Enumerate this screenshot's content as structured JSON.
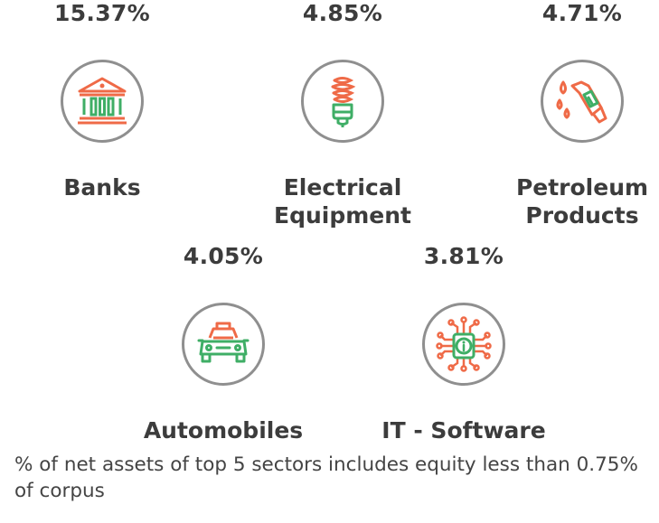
{
  "chart_data": {
    "type": "table",
    "sectors": [
      {
        "name": "Banks",
        "value": 15.37,
        "value_label": "15.37%",
        "label_lines": [
          "Banks"
        ],
        "icon": "bank-icon"
      },
      {
        "name": "Electrical Equipment",
        "value": 4.85,
        "value_label": "4.85%",
        "label_lines": [
          "Electrical",
          "Equipment"
        ],
        "icon": "light-bulb-icon"
      },
      {
        "name": "Petroleum Products",
        "value": 4.71,
        "value_label": "4.71%",
        "label_lines": [
          "Petroleum",
          "Products"
        ],
        "icon": "fuel-nozzle-icon"
      },
      {
        "name": "Automobiles",
        "value": 4.05,
        "value_label": "4.05%",
        "label_lines": [
          "Automobiles"
        ],
        "icon": "car-icon"
      },
      {
        "name": "IT - Software",
        "value": 3.81,
        "value_label": "3.81%",
        "label_lines": [
          "IT - Software"
        ],
        "icon": "chip-info-icon"
      }
    ],
    "footnote": "% of net assets of top 5 sectors includes equity less than 0.75% of corpus"
  },
  "colors": {
    "green": "#3fae66",
    "orange": "#ef6a47",
    "circle": "#8f8f8f",
    "text": "#3c3c3c"
  }
}
